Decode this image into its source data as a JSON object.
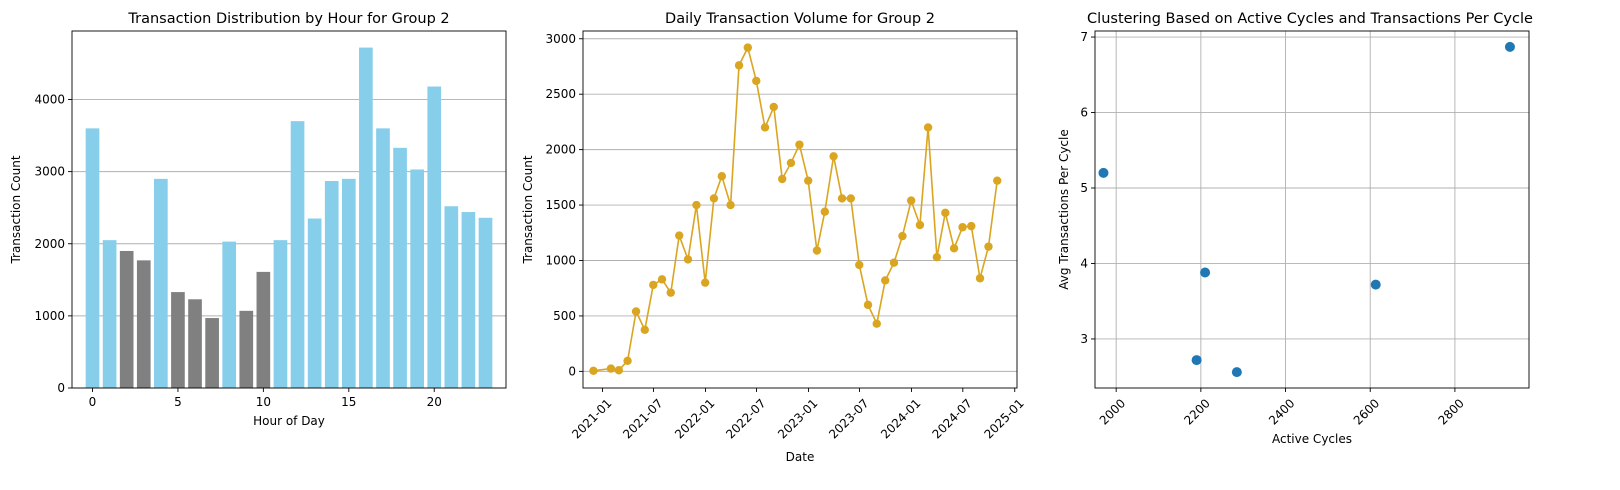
{
  "chart_data": [
    {
      "id": "hourly",
      "type": "bar",
      "title": "Transaction Distribution by Hour for Group 2",
      "xlabel": "Hour of Day",
      "ylabel": "Transaction Count",
      "xlim": [
        -1.2,
        24.2
      ],
      "ylim": [
        0,
        4950
      ],
      "xticks": [
        0,
        5,
        10,
        15,
        20
      ],
      "yticks": [
        0,
        1000,
        2000,
        3000,
        4000
      ],
      "grid": "y",
      "colors": {
        "highlight": "#87ceeb",
        "normal": "#808080"
      },
      "bars": [
        {
          "hour": 0,
          "value": 3600,
          "highlight": true
        },
        {
          "hour": 1,
          "value": 2050,
          "highlight": true
        },
        {
          "hour": 2,
          "value": 1900,
          "highlight": false
        },
        {
          "hour": 3,
          "value": 1770,
          "highlight": false
        },
        {
          "hour": 4,
          "value": 2900,
          "highlight": true
        },
        {
          "hour": 5,
          "value": 1330,
          "highlight": false
        },
        {
          "hour": 6,
          "value": 1230,
          "highlight": false
        },
        {
          "hour": 7,
          "value": 970,
          "highlight": false
        },
        {
          "hour": 8,
          "value": 2030,
          "highlight": true
        },
        {
          "hour": 9,
          "value": 1070,
          "highlight": false
        },
        {
          "hour": 10,
          "value": 1610,
          "highlight": false
        },
        {
          "hour": 11,
          "value": 2050,
          "highlight": true
        },
        {
          "hour": 12,
          "value": 3700,
          "highlight": true
        },
        {
          "hour": 13,
          "value": 2350,
          "highlight": true
        },
        {
          "hour": 14,
          "value": 2870,
          "highlight": true
        },
        {
          "hour": 15,
          "value": 2900,
          "highlight": true
        },
        {
          "hour": 16,
          "value": 4720,
          "highlight": true
        },
        {
          "hour": 17,
          "value": 3600,
          "highlight": true
        },
        {
          "hour": 18,
          "value": 3330,
          "highlight": true
        },
        {
          "hour": 19,
          "value": 3030,
          "highlight": true
        },
        {
          "hour": 20,
          "value": 4180,
          "highlight": true
        },
        {
          "hour": 21,
          "value": 2520,
          "highlight": true
        },
        {
          "hour": 22,
          "value": 2440,
          "highlight": true
        },
        {
          "hour": 23,
          "value": 2360,
          "highlight": true
        }
      ]
    },
    {
      "id": "daily",
      "type": "line",
      "title": "Daily Transaction Volume for Group 2",
      "xlabel": "Date",
      "ylabel": "Transaction Count",
      "xlim": [
        "2020-10-24",
        "2025-01-09"
      ],
      "ylim": [
        -150,
        3070
      ],
      "xticks": [
        "2021-01",
        "2021-07",
        "2022-01",
        "2022-07",
        "2023-01",
        "2023-07",
        "2024-01",
        "2024-07",
        "2025-01"
      ],
      "yticks": [
        0,
        500,
        1000,
        1500,
        2000,
        2500,
        3000
      ],
      "grid": "y",
      "color": "#daa520",
      "points": [
        {
          "x": "2020-11-30",
          "y": 5
        },
        {
          "x": "2021-01-31",
          "y": 25
        },
        {
          "x": "2021-02-28",
          "y": 10
        },
        {
          "x": "2021-03-31",
          "y": 95
        },
        {
          "x": "2021-04-30",
          "y": 540
        },
        {
          "x": "2021-05-31",
          "y": 375
        },
        {
          "x": "2021-06-30",
          "y": 780
        },
        {
          "x": "2021-07-31",
          "y": 830
        },
        {
          "x": "2021-08-31",
          "y": 710
        },
        {
          "x": "2021-09-30",
          "y": 1225
        },
        {
          "x": "2021-10-31",
          "y": 1010
        },
        {
          "x": "2021-11-30",
          "y": 1500
        },
        {
          "x": "2021-12-31",
          "y": 800
        },
        {
          "x": "2022-01-31",
          "y": 1560
        },
        {
          "x": "2022-02-28",
          "y": 1760
        },
        {
          "x": "2022-03-31",
          "y": 1500
        },
        {
          "x": "2022-04-30",
          "y": 2760
        },
        {
          "x": "2022-05-31",
          "y": 2920
        },
        {
          "x": "2022-06-30",
          "y": 2620
        },
        {
          "x": "2022-07-31",
          "y": 2200
        },
        {
          "x": "2022-08-31",
          "y": 2385
        },
        {
          "x": "2022-09-30",
          "y": 1735
        },
        {
          "x": "2022-10-31",
          "y": 1880
        },
        {
          "x": "2022-11-30",
          "y": 2045
        },
        {
          "x": "2022-12-31",
          "y": 1720
        },
        {
          "x": "2023-01-31",
          "y": 1090
        },
        {
          "x": "2023-02-28",
          "y": 1440
        },
        {
          "x": "2023-03-31",
          "y": 1940
        },
        {
          "x": "2023-04-30",
          "y": 1560
        },
        {
          "x": "2023-05-31",
          "y": 1560
        },
        {
          "x": "2023-06-30",
          "y": 960
        },
        {
          "x": "2023-07-31",
          "y": 600
        },
        {
          "x": "2023-08-31",
          "y": 430
        },
        {
          "x": "2023-09-30",
          "y": 820
        },
        {
          "x": "2023-10-31",
          "y": 980
        },
        {
          "x": "2023-11-30",
          "y": 1220
        },
        {
          "x": "2023-12-31",
          "y": 1540
        },
        {
          "x": "2024-01-31",
          "y": 1320
        },
        {
          "x": "2024-02-29",
          "y": 2200
        },
        {
          "x": "2024-03-31",
          "y": 1030
        },
        {
          "x": "2024-04-30",
          "y": 1430
        },
        {
          "x": "2024-05-31",
          "y": 1110
        },
        {
          "x": "2024-06-30",
          "y": 1300
        },
        {
          "x": "2024-07-31",
          "y": 1310
        },
        {
          "x": "2024-08-31",
          "y": 840
        },
        {
          "x": "2024-09-30",
          "y": 1125
        },
        {
          "x": "2024-10-31",
          "y": 1720
        }
      ]
    },
    {
      "id": "clusters",
      "type": "scatter",
      "title": "Clustering Based on Active Cycles and Transactions Per Cycle",
      "xlabel": "Active Cycles",
      "ylabel": "Avg Transactions Per Cycle",
      "xlim": [
        1950,
        2975
      ],
      "ylim": [
        2.35,
        7.08
      ],
      "xticks": [
        2000,
        2200,
        2400,
        2600,
        2800
      ],
      "yticks": [
        3,
        4,
        5,
        6,
        7
      ],
      "grid": "both",
      "color": "#1f77b4",
      "points": [
        {
          "x": 1970,
          "y": 5.2
        },
        {
          "x": 2190,
          "y": 2.72
        },
        {
          "x": 2210,
          "y": 3.88
        },
        {
          "x": 2285,
          "y": 2.56
        },
        {
          "x": 2613,
          "y": 3.72
        },
        {
          "x": 2930,
          "y": 6.87
        }
      ]
    }
  ]
}
